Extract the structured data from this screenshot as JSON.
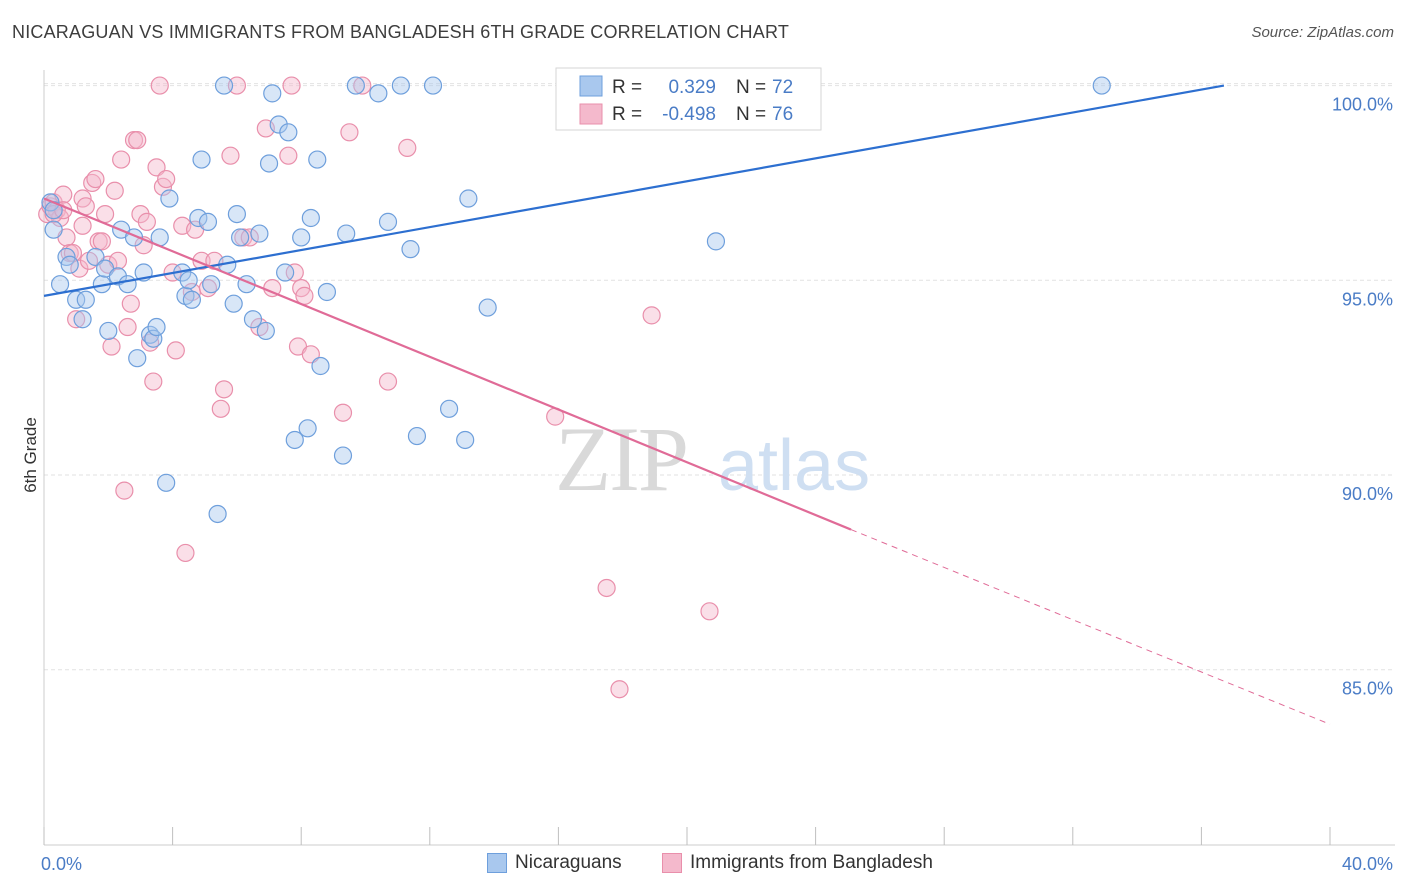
{
  "title": "NICARAGUAN VS IMMIGRANTS FROM BANGLADESH 6TH GRADE CORRELATION CHART",
  "source": "Source: ZipAtlas.com",
  "watermark": {
    "bold": "ZIP",
    "light": "atlas"
  },
  "colors": {
    "blue_fill": "#a9c8ee",
    "blue_stroke": "#6e9fdc",
    "blue_line": "#2d6fd0",
    "pink_fill": "#f4b9cc",
    "pink_stroke": "#e98fab",
    "pink_line": "#e06b97",
    "label": "#4a7cc6",
    "grid": "#e2e2e2"
  },
  "legend_box": {
    "r_label": "R =",
    "n_label": "N =",
    "rows": [
      {
        "r": "0.329",
        "n": "72",
        "color": "blue"
      },
      {
        "r": "-0.498",
        "n": "76",
        "color": "pink"
      }
    ]
  },
  "bottom_legend": [
    "Nicaraguans",
    "Immigrants from Bangladesh"
  ],
  "chart_data": {
    "type": "scatter",
    "title": "NICARAGUAN VS IMMIGRANTS FROM BANGLADESH 6TH GRADE CORRELATION CHART",
    "xlabel": "",
    "ylabel": "6th Grade",
    "xlim": [
      0,
      40
    ],
    "ylim": [
      80.5,
      100.4
    ],
    "x_tick_labels": [
      "0.0%",
      "40.0%"
    ],
    "y_ticks": [
      85,
      90,
      95,
      100
    ],
    "y_tick_labels": [
      "85.0%",
      "90.0%",
      "95.0%",
      "100.0%"
    ],
    "grid": true,
    "series": [
      {
        "name": "Nicaraguans",
        "color": "blue",
        "r": 0.329,
        "n": 72,
        "trend": {
          "x": [
            0,
            36.7
          ],
          "y": [
            94.6,
            100.0
          ]
        },
        "points": [
          [
            0.2,
            97.0
          ],
          [
            0.3,
            96.8
          ],
          [
            0.3,
            96.3
          ],
          [
            0.5,
            94.9
          ],
          [
            0.7,
            95.6
          ],
          [
            0.8,
            95.4
          ],
          [
            1.0,
            94.5
          ],
          [
            1.2,
            94.0
          ],
          [
            1.3,
            94.5
          ],
          [
            1.6,
            95.6
          ],
          [
            1.8,
            94.9
          ],
          [
            1.9,
            95.3
          ],
          [
            2.0,
            93.7
          ],
          [
            2.3,
            95.1
          ],
          [
            2.4,
            96.3
          ],
          [
            2.6,
            94.9
          ],
          [
            2.8,
            96.1
          ],
          [
            2.9,
            93.0
          ],
          [
            3.1,
            95.2
          ],
          [
            3.3,
            93.6
          ],
          [
            3.4,
            93.5
          ],
          [
            3.5,
            93.8
          ],
          [
            3.6,
            96.1
          ],
          [
            3.8,
            89.8
          ],
          [
            3.9,
            97.1
          ],
          [
            4.3,
            95.2
          ],
          [
            4.4,
            94.6
          ],
          [
            4.5,
            95.0
          ],
          [
            4.6,
            94.5
          ],
          [
            4.8,
            96.6
          ],
          [
            4.9,
            98.1
          ],
          [
            5.1,
            96.5
          ],
          [
            5.2,
            94.9
          ],
          [
            5.4,
            89.0
          ],
          [
            5.6,
            100.0
          ],
          [
            5.7,
            95.4
          ],
          [
            5.9,
            94.4
          ],
          [
            6.0,
            96.7
          ],
          [
            6.1,
            96.1
          ],
          [
            6.3,
            94.9
          ],
          [
            6.5,
            94.0
          ],
          [
            6.7,
            96.2
          ],
          [
            6.9,
            93.7
          ],
          [
            7.0,
            98.0
          ],
          [
            7.1,
            99.8
          ],
          [
            7.3,
            99.0
          ],
          [
            7.5,
            95.2
          ],
          [
            7.6,
            98.8
          ],
          [
            7.8,
            90.9
          ],
          [
            8.0,
            96.1
          ],
          [
            8.2,
            91.2
          ],
          [
            8.3,
            96.6
          ],
          [
            8.5,
            98.1
          ],
          [
            8.6,
            92.8
          ],
          [
            8.8,
            94.7
          ],
          [
            9.3,
            90.5
          ],
          [
            9.4,
            96.2
          ],
          [
            9.7,
            100.0
          ],
          [
            10.4,
            99.8
          ],
          [
            10.7,
            96.5
          ],
          [
            11.1,
            100.0
          ],
          [
            11.4,
            95.8
          ],
          [
            11.6,
            91.0
          ],
          [
            12.1,
            100.0
          ],
          [
            12.6,
            91.7
          ],
          [
            13.1,
            90.9
          ],
          [
            13.2,
            97.1
          ],
          [
            13.8,
            94.3
          ],
          [
            20.9,
            96.0
          ],
          [
            22.8,
            100.0
          ],
          [
            23.8,
            100.0
          ],
          [
            32.9,
            100.0
          ]
        ]
      },
      {
        "name": "Immigrants from Bangladesh",
        "color": "pink",
        "r": -0.498,
        "n": 76,
        "trend": {
          "x": [
            0,
            25.1
          ],
          "y": [
            97.1,
            88.6
          ]
        },
        "trend_dashed": {
          "x": [
            25.1,
            40.0
          ],
          "y": [
            88.6,
            83.6
          ]
        },
        "points": [
          [
            0.1,
            96.7
          ],
          [
            0.2,
            96.9
          ],
          [
            0.3,
            97.0
          ],
          [
            0.4,
            96.8
          ],
          [
            0.5,
            96.6
          ],
          [
            0.6,
            97.2
          ],
          [
            0.7,
            96.1
          ],
          [
            0.8,
            95.7
          ],
          [
            0.9,
            95.7
          ],
          [
            1.0,
            94.0
          ],
          [
            1.1,
            95.3
          ],
          [
            1.2,
            97.1
          ],
          [
            1.3,
            96.9
          ],
          [
            1.4,
            95.5
          ],
          [
            1.5,
            97.5
          ],
          [
            1.6,
            97.6
          ],
          [
            1.7,
            96.0
          ],
          [
            1.8,
            96.0
          ],
          [
            1.9,
            96.7
          ],
          [
            2.0,
            95.4
          ],
          [
            2.1,
            93.3
          ],
          [
            2.2,
            97.3
          ],
          [
            2.3,
            95.5
          ],
          [
            2.4,
            98.1
          ],
          [
            2.5,
            89.6
          ],
          [
            2.6,
            93.8
          ],
          [
            2.7,
            94.4
          ],
          [
            2.8,
            98.6
          ],
          [
            2.9,
            98.6
          ],
          [
            3.0,
            96.7
          ],
          [
            3.1,
            95.9
          ],
          [
            3.2,
            96.5
          ],
          [
            3.3,
            93.4
          ],
          [
            3.4,
            92.4
          ],
          [
            3.5,
            97.9
          ],
          [
            3.6,
            100.0
          ],
          [
            3.7,
            97.4
          ],
          [
            3.8,
            97.6
          ],
          [
            4.0,
            95.2
          ],
          [
            4.1,
            93.2
          ],
          [
            4.3,
            96.4
          ],
          [
            4.4,
            88.0
          ],
          [
            4.6,
            94.7
          ],
          [
            4.7,
            96.3
          ],
          [
            4.9,
            95.5
          ],
          [
            5.1,
            94.8
          ],
          [
            5.3,
            95.5
          ],
          [
            5.5,
            91.7
          ],
          [
            5.6,
            92.2
          ],
          [
            5.8,
            98.2
          ],
          [
            6.0,
            100.0
          ],
          [
            6.2,
            96.1
          ],
          [
            6.4,
            96.1
          ],
          [
            6.7,
            93.8
          ],
          [
            6.9,
            98.9
          ],
          [
            7.1,
            94.8
          ],
          [
            7.6,
            98.2
          ],
          [
            7.7,
            100.0
          ],
          [
            7.8,
            95.2
          ],
          [
            7.9,
            93.3
          ],
          [
            8.0,
            94.8
          ],
          [
            8.1,
            94.6
          ],
          [
            8.3,
            93.1
          ],
          [
            9.3,
            91.6
          ],
          [
            9.5,
            98.8
          ],
          [
            9.9,
            100.0
          ],
          [
            10.7,
            92.4
          ],
          [
            11.3,
            98.4
          ],
          [
            15.9,
            91.5
          ],
          [
            17.5,
            87.1
          ],
          [
            17.9,
            84.5
          ],
          [
            18.9,
            94.1
          ],
          [
            20.7,
            86.5
          ],
          [
            0.3,
            96.7
          ],
          [
            1.2,
            96.4
          ],
          [
            0.6,
            96.8
          ]
        ]
      }
    ]
  }
}
